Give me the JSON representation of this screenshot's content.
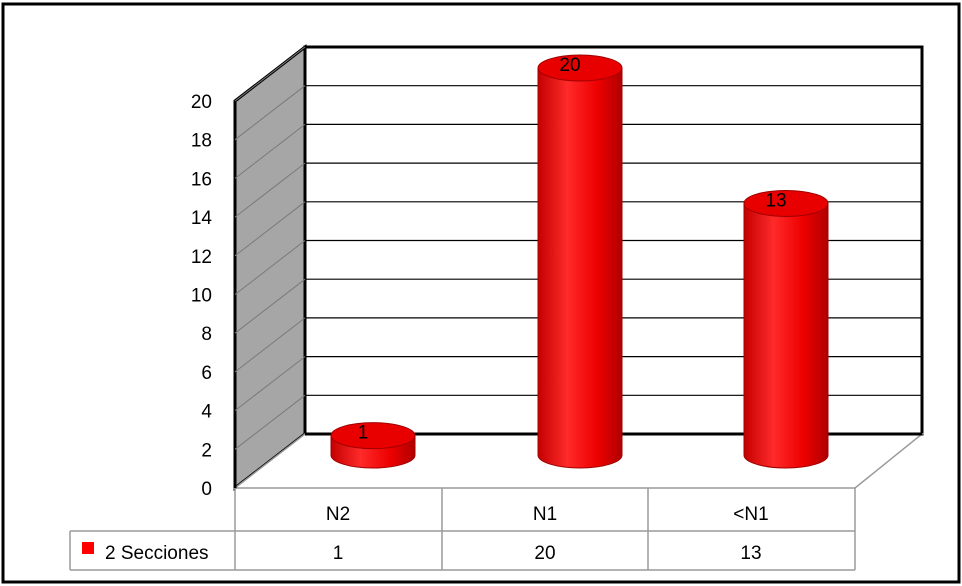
{
  "chart_data": {
    "type": "bar",
    "style": "3d-cylinder",
    "categories": [
      "N2",
      "N1",
      "<N1"
    ],
    "series": [
      {
        "name": "2 Secciones",
        "values": [
          1,
          20,
          13
        ],
        "color": "#ff0000"
      }
    ],
    "ylim": [
      0,
      20
    ],
    "yticks": [
      "0",
      "2",
      "4",
      "6",
      "8",
      "10",
      "12",
      "14",
      "16",
      "18",
      "20"
    ],
    "data_labels": [
      "1",
      "20",
      "13"
    ],
    "grid": true,
    "legend": "data-table-left",
    "data_table": {
      "header": [
        "N2",
        "N1",
        "<N1"
      ],
      "row_label": "2 Secciones",
      "row_values": [
        "1",
        "20",
        "13"
      ]
    }
  },
  "colors": {
    "bar": "#ff0000",
    "bar_dark": "#b80000",
    "side_wall": "#a6a6a6",
    "frame": "#000000",
    "grid": "#000000"
  }
}
